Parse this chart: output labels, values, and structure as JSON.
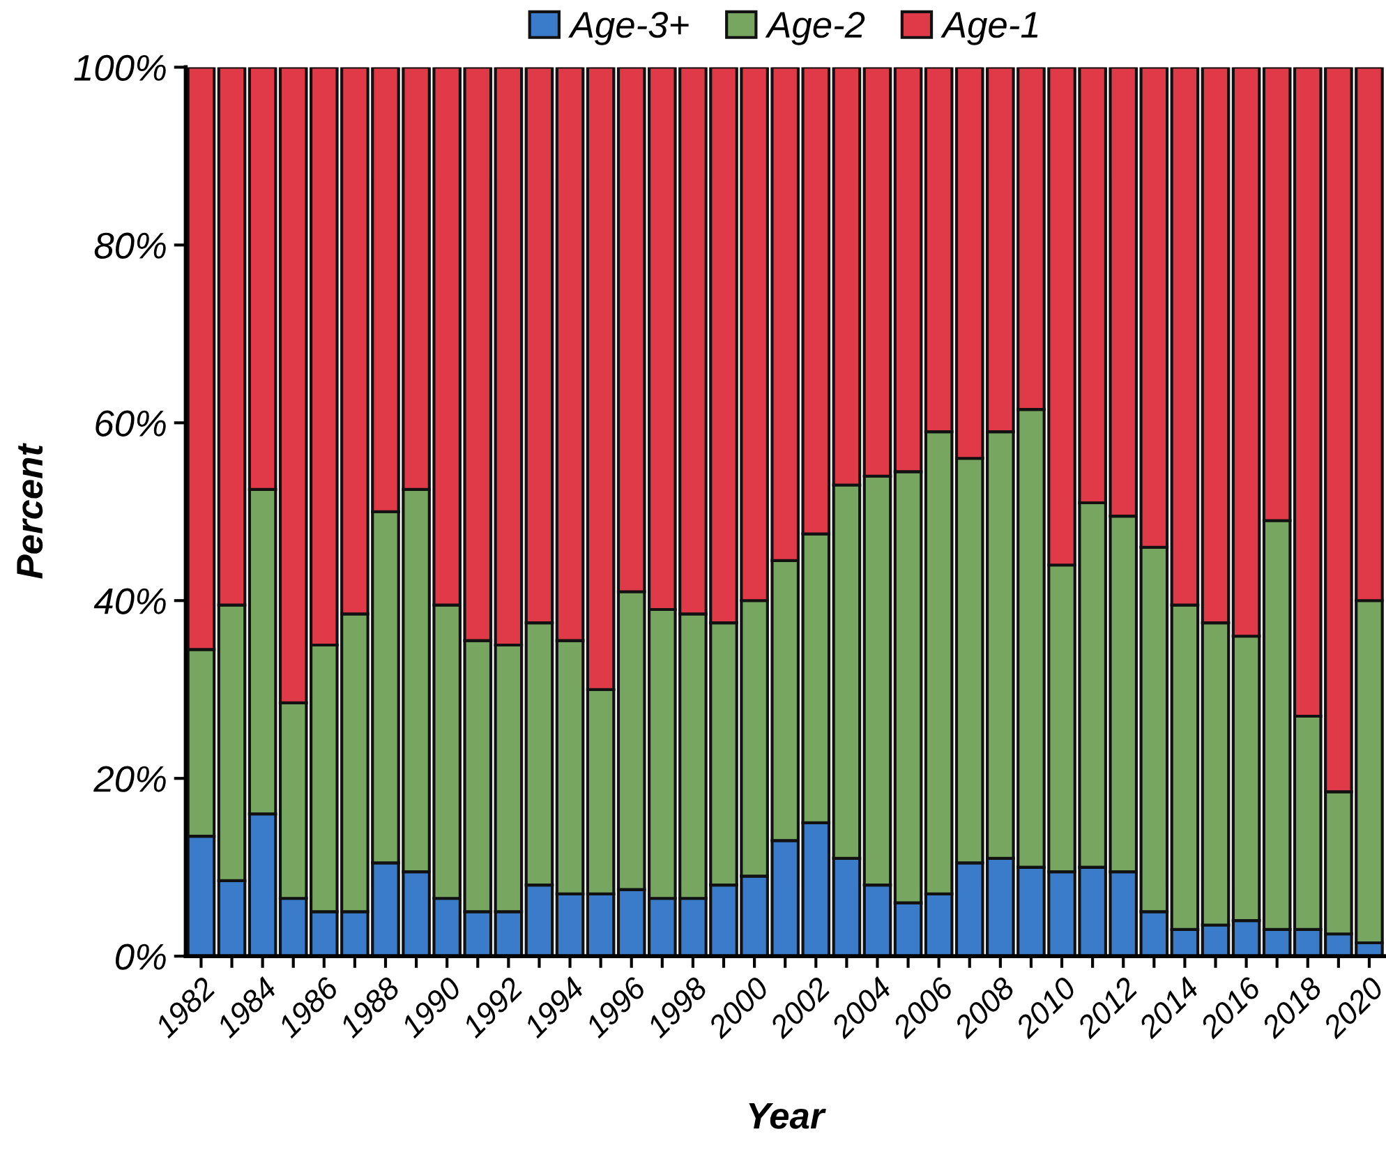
{
  "chart_data": {
    "type": "bar",
    "stacked": true,
    "xlabel": "Year",
    "ylabel": "Percent",
    "categories": [
      "1982",
      null,
      "1984",
      null,
      "1986",
      null,
      "1988",
      null,
      "1990",
      null,
      "1992",
      null,
      "1994",
      null,
      "1996",
      null,
      "1998",
      null,
      "2000",
      null,
      "2002",
      null,
      "2004",
      null,
      "2006",
      null,
      "2008",
      null,
      "2010",
      null,
      "2012",
      null,
      "2014",
      null,
      "2016",
      null,
      "2018",
      null,
      "2020"
    ],
    "series": [
      {
        "name": "Age-3+",
        "color": "#3a7cc9",
        "values": [
          13.5,
          8.5,
          16,
          6.5,
          5,
          5,
          10.5,
          9.5,
          6.5,
          5,
          5,
          8,
          7,
          7,
          7.5,
          6.5,
          6.5,
          8,
          9,
          13,
          15,
          11,
          8,
          6,
          7,
          10.5,
          11,
          10,
          9.5,
          10,
          9.5,
          5,
          3,
          3.5,
          4,
          3,
          3,
          2.5,
          1.5
        ]
      },
      {
        "name": "Age-2",
        "color": "#77a660",
        "values": [
          21,
          31,
          36.5,
          22,
          30,
          33.5,
          39.5,
          43,
          33,
          30.5,
          30,
          29.5,
          28.5,
          23,
          33.5,
          32.5,
          32,
          29.5,
          31,
          31.5,
          32.5,
          42,
          46,
          48.5,
          52,
          45.5,
          48,
          51.5,
          34.5,
          41,
          40,
          41,
          36.5,
          34,
          32,
          46,
          24,
          16,
          38.5
        ]
      },
      {
        "name": "Age-1",
        "color": "#e03a48",
        "values": [
          65.5,
          60.5,
          47.5,
          71.5,
          65,
          61.5,
          50,
          47.5,
          60.5,
          64.5,
          65,
          62.5,
          64.5,
          70,
          59,
          61,
          61.5,
          62.5,
          60,
          55.5,
          52.5,
          47,
          46,
          45.5,
          41,
          44,
          41,
          38.5,
          56,
          49,
          50.5,
          54,
          60.5,
          62.5,
          64,
          51,
          73,
          81.5,
          60
        ]
      }
    ],
    "ylim": [
      0,
      100
    ],
    "yticks": [
      {
        "value": 0,
        "label": "0%"
      },
      {
        "value": 20,
        "label": "20%"
      },
      {
        "value": 40,
        "label": "40%"
      },
      {
        "value": 60,
        "label": "60%"
      },
      {
        "value": 80,
        "label": "80%"
      },
      {
        "value": 100,
        "label": "100%"
      }
    ],
    "legend": "top",
    "grid": false
  }
}
